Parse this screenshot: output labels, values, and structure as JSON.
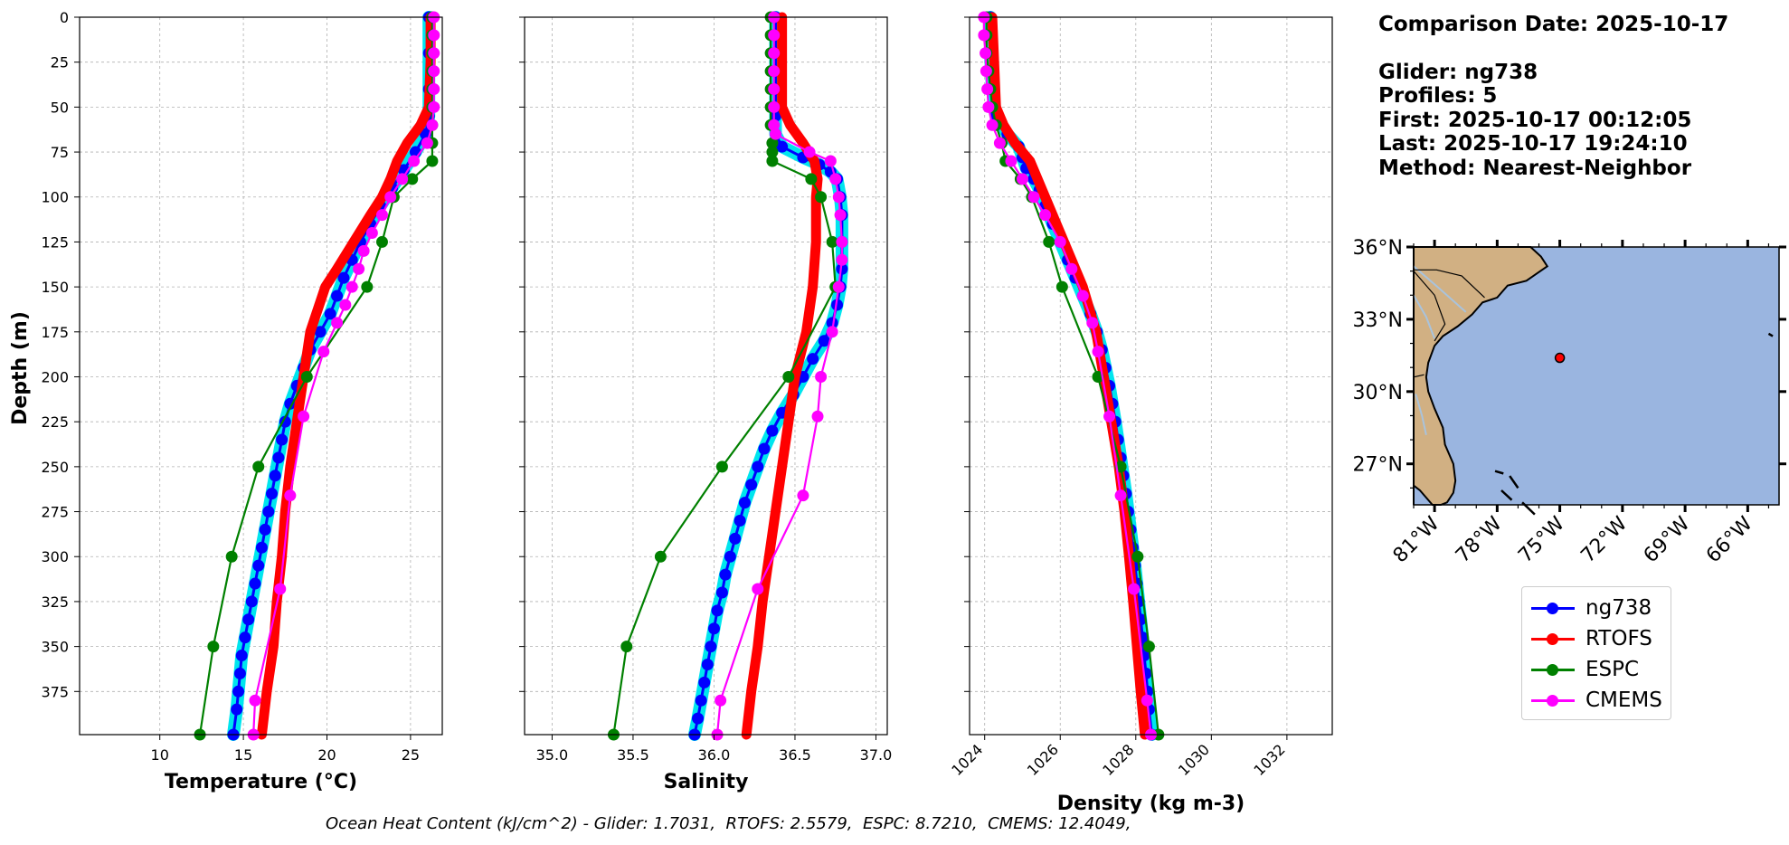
{
  "info": {
    "comparison_date": "Comparison Date: 2025-10-17",
    "glider": "Glider: ng738",
    "profiles": "Profiles: 5",
    "first": "First: 2025-10-17 00:12:05",
    "last": "Last: 2025-10-17 19:24:10",
    "method": "Method: Nearest-Neighbor"
  },
  "caption": "Ocean Heat Content (kJ/cm^2) - Glider: 1.7031,  RTOFS: 2.5579,  ESPC: 8.7210,  CMEMS: 12.4049,",
  "colors": {
    "ng738": "#0000ff",
    "ng738_band": "#00e5ee",
    "RTOFS": "#ff0000",
    "ESPC": "#008000",
    "CMEMS": "#ff00ff",
    "ocean": "#9ab5e0",
    "land": "#d1b083"
  },
  "legend": [
    {
      "name": "ng738",
      "color": "#0000ff"
    },
    {
      "name": "RTOFS",
      "color": "#ff0000"
    },
    {
      "name": "ESPC",
      "color": "#008000"
    },
    {
      "name": "CMEMS",
      "color": "#ff00ff"
    }
  ],
  "chart_data": [
    {
      "type": "line",
      "xlabel": "Temperature (°C)",
      "ylabel": "Depth (m)",
      "xlim": [
        5.2,
        26.9
      ],
      "ylim": [
        399,
        0
      ],
      "xticks": [
        10,
        15,
        20,
        25
      ],
      "yticks": [
        0,
        25,
        50,
        75,
        100,
        125,
        150,
        175,
        200,
        225,
        250,
        275,
        300,
        325,
        350,
        375
      ],
      "series": [
        {
          "name": "ng738",
          "depth": [
            0,
            20,
            40,
            55,
            65,
            75,
            85,
            95,
            105,
            115,
            125,
            135,
            145,
            155,
            165,
            175,
            185,
            195,
            205,
            215,
            225,
            235,
            245,
            255,
            265,
            275,
            285,
            295,
            305,
            315,
            325,
            335,
            345,
            355,
            365,
            375,
            385,
            399
          ],
          "values": [
            26.1,
            26.1,
            26.1,
            26.1,
            25.9,
            25.3,
            24.6,
            23.9,
            23.2,
            22.6,
            22.0,
            21.5,
            21.0,
            20.6,
            20.2,
            19.6,
            19.0,
            18.6,
            18.2,
            17.8,
            17.5,
            17.3,
            17.1,
            16.9,
            16.7,
            16.5,
            16.3,
            16.1,
            15.9,
            15.7,
            15.5,
            15.3,
            15.1,
            14.9,
            14.8,
            14.7,
            14.6,
            14.4
          ]
        },
        {
          "name": "RTOFS",
          "depth": [
            0,
            25,
            50,
            60,
            70,
            80,
            90,
            100,
            110,
            125,
            140,
            150,
            175,
            200,
            225,
            250,
            275,
            300,
            325,
            350,
            375,
            399
          ],
          "values": [
            26.2,
            26.2,
            26.1,
            25.6,
            24.8,
            24.2,
            23.8,
            23.3,
            22.6,
            21.6,
            20.6,
            19.9,
            19.0,
            18.6,
            18.2,
            17.8,
            17.5,
            17.3,
            17.0,
            16.8,
            16.4,
            16.1
          ]
        },
        {
          "name": "ESPC",
          "depth": [
            0,
            10,
            20,
            30,
            40,
            50,
            60,
            70,
            80,
            90,
            100,
            125,
            150,
            200,
            250,
            300,
            350,
            399
          ],
          "values": [
            26.3,
            26.3,
            26.3,
            26.3,
            26.3,
            26.3,
            26.3,
            26.3,
            26.3,
            25.1,
            24.0,
            23.3,
            22.4,
            18.8,
            15.9,
            14.3,
            13.2,
            12.4
          ]
        },
        {
          "name": "CMEMS",
          "depth": [
            0,
            10,
            20,
            30,
            40,
            50,
            60,
            70,
            80,
            90,
            100,
            110,
            120,
            130,
            140,
            150,
            160,
            170,
            186,
            222,
            266,
            318,
            380,
            399
          ],
          "values": [
            26.4,
            26.4,
            26.4,
            26.4,
            26.4,
            26.4,
            26.3,
            26.0,
            25.2,
            24.5,
            23.8,
            23.3,
            22.7,
            22.2,
            21.9,
            21.5,
            21.1,
            20.6,
            19.8,
            18.6,
            17.8,
            17.2,
            15.7,
            15.6
          ]
        }
      ]
    },
    {
      "type": "line",
      "xlabel": "Salinity",
      "ylabel": "",
      "xlim": [
        34.83,
        37.07
      ],
      "ylim": [
        399,
        0
      ],
      "xticks": [
        35.0,
        35.5,
        36.0,
        36.5,
        37.0
      ],
      "series": [
        {
          "name": "ng738",
          "depth": [
            0,
            20,
            40,
            55,
            65,
            72,
            78,
            82,
            86,
            90,
            100,
            110,
            125,
            140,
            150,
            160,
            170,
            180,
            190,
            200,
            210,
            220,
            230,
            240,
            250,
            260,
            270,
            280,
            290,
            300,
            310,
            320,
            330,
            340,
            350,
            360,
            370,
            380,
            390,
            399
          ],
          "values": [
            36.38,
            36.38,
            36.38,
            36.38,
            36.38,
            36.42,
            36.55,
            36.65,
            36.72,
            36.76,
            36.78,
            36.79,
            36.79,
            36.79,
            36.78,
            36.76,
            36.73,
            36.68,
            36.61,
            36.55,
            36.49,
            36.42,
            36.36,
            36.31,
            36.27,
            36.23,
            36.19,
            36.16,
            36.13,
            36.1,
            36.07,
            36.05,
            36.02,
            36.0,
            35.98,
            35.96,
            35.94,
            35.92,
            35.9,
            35.88
          ]
        },
        {
          "name": "RTOFS",
          "depth": [
            0,
            25,
            50,
            60,
            70,
            80,
            90,
            100,
            125,
            150,
            175,
            200,
            225,
            250,
            275,
            300,
            325,
            350,
            375,
            399
          ],
          "values": [
            36.42,
            36.42,
            36.42,
            36.47,
            36.55,
            36.62,
            36.64,
            36.63,
            36.63,
            36.61,
            36.57,
            36.5,
            36.46,
            36.42,
            36.38,
            36.34,
            36.3,
            36.27,
            36.23,
            36.2
          ]
        },
        {
          "name": "ESPC",
          "depth": [
            0,
            10,
            20,
            30,
            40,
            50,
            60,
            70,
            75,
            80,
            90,
            100,
            125,
            150,
            200,
            250,
            300,
            350,
            399
          ],
          "values": [
            36.35,
            36.35,
            36.35,
            36.35,
            36.35,
            36.35,
            36.35,
            36.36,
            36.36,
            36.36,
            36.6,
            36.66,
            36.73,
            36.75,
            36.46,
            36.05,
            35.67,
            35.46,
            35.38
          ]
        },
        {
          "name": "CMEMS",
          "depth": [
            0,
            10,
            20,
            30,
            40,
            50,
            60,
            65,
            75,
            80,
            90,
            100,
            110,
            125,
            135,
            150,
            175,
            200,
            222,
            266,
            318,
            380,
            399
          ],
          "values": [
            36.37,
            36.37,
            36.37,
            36.37,
            36.37,
            36.37,
            36.37,
            36.38,
            36.59,
            36.72,
            36.75,
            36.77,
            36.78,
            36.79,
            36.79,
            36.77,
            36.73,
            36.66,
            36.64,
            36.55,
            36.27,
            36.04,
            36.02
          ]
        }
      ]
    },
    {
      "type": "line",
      "xlabel": "Density (kg m-3)",
      "ylabel": "",
      "xlim": [
        1023.6,
        1033.2
      ],
      "ylim": [
        399,
        0
      ],
      "xticks": [
        1024,
        1026,
        1028,
        1030,
        1032
      ],
      "series": [
        {
          "name": "ng738",
          "depth": [
            0,
            20,
            40,
            55,
            65,
            72,
            78,
            84,
            90,
            96,
            105,
            115,
            125,
            135,
            145,
            155,
            165,
            175,
            185,
            195,
            205,
            215,
            225,
            235,
            245,
            255,
            265,
            275,
            285,
            295,
            305,
            315,
            325,
            335,
            345,
            355,
            365,
            375,
            385,
            399
          ],
          "values": [
            1024.15,
            1024.15,
            1024.2,
            1024.3,
            1024.6,
            1024.9,
            1025.0,
            1025.1,
            1025.3,
            1025.45,
            1025.6,
            1025.8,
            1026.0,
            1026.2,
            1026.4,
            1026.6,
            1026.8,
            1026.97,
            1027.1,
            1027.2,
            1027.3,
            1027.38,
            1027.46,
            1027.53,
            1027.6,
            1027.67,
            1027.74,
            1027.8,
            1027.86,
            1027.92,
            1027.98,
            1028.03,
            1028.08,
            1028.13,
            1028.18,
            1028.22,
            1028.27,
            1028.31,
            1028.35,
            1028.42
          ]
        },
        {
          "name": "RTOFS",
          "depth": [
            0,
            25,
            50,
            60,
            70,
            80,
            90,
            100,
            125,
            150,
            175,
            200,
            225,
            250,
            275,
            300,
            325,
            350,
            375,
            399
          ],
          "values": [
            1024.2,
            1024.25,
            1024.3,
            1024.5,
            1024.8,
            1025.2,
            1025.4,
            1025.6,
            1026.1,
            1026.6,
            1026.95,
            1027.15,
            1027.35,
            1027.55,
            1027.7,
            1027.82,
            1027.93,
            1028.03,
            1028.13,
            1028.24
          ]
        },
        {
          "name": "ESPC",
          "depth": [
            0,
            10,
            20,
            30,
            40,
            50,
            60,
            70,
            80,
            90,
            100,
            125,
            150,
            200,
            250,
            300,
            350,
            399
          ],
          "values": [
            1024.05,
            1024.05,
            1024.05,
            1024.1,
            1024.15,
            1024.2,
            1024.3,
            1024.45,
            1024.55,
            1024.95,
            1025.25,
            1025.7,
            1026.05,
            1027.0,
            1027.6,
            1028.05,
            1028.35,
            1028.6
          ]
        },
        {
          "name": "CMEMS",
          "depth": [
            0,
            10,
            20,
            30,
            40,
            50,
            60,
            70,
            80,
            90,
            100,
            110,
            125,
            140,
            155,
            170,
            186,
            222,
            266,
            318,
            380,
            399
          ],
          "values": [
            1023.98,
            1023.98,
            1024.02,
            1024.04,
            1024.07,
            1024.1,
            1024.2,
            1024.4,
            1024.7,
            1025.0,
            1025.3,
            1025.6,
            1026.0,
            1026.3,
            1026.6,
            1026.85,
            1027.0,
            1027.3,
            1027.6,
            1027.95,
            1028.3,
            1028.4
          ]
        }
      ]
    },
    {
      "type": "map",
      "lat_range": [
        25.3,
        36.0
      ],
      "lon_range": [
        -82.0,
        -64.5
      ],
      "yticks": [
        "36°N",
        "33°N",
        "30°N",
        "27°N"
      ],
      "xticks": [
        "81°W",
        "78°W",
        "75°W",
        "72°W",
        "69°W",
        "66°W"
      ],
      "marker": {
        "lat": 31.4,
        "lon": -75.0
      }
    }
  ]
}
